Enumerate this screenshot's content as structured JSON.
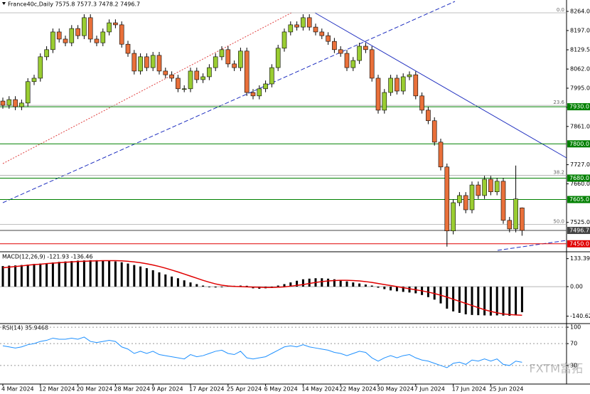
{
  "watermark": "FXTM富拓",
  "chart_data": [
    {
      "type": "candlestick",
      "title": "France40c,Daily  7575.8 7577.3 7478.2 7496.7",
      "categories": [
        "4 Mar 2024",
        null,
        null,
        null,
        null,
        null,
        "12 Mar 2024",
        null,
        null,
        null,
        null,
        null,
        "20 Mar 2024",
        null,
        null,
        null,
        null,
        null,
        "28 Mar 2024",
        null,
        null,
        null,
        null,
        null,
        "9 Apr 2024",
        null,
        null,
        null,
        null,
        null,
        "17 Apr 2024",
        null,
        null,
        null,
        null,
        null,
        "25 Apr 2024",
        null,
        null,
        null,
        null,
        null,
        "6 May 2024",
        null,
        null,
        null,
        null,
        null,
        "14 May 2024",
        null,
        null,
        null,
        null,
        null,
        "22 May 2024",
        null,
        null,
        null,
        null,
        null,
        "30 May 2024",
        null,
        null,
        null,
        null,
        null,
        "7 Jun 2024",
        null,
        null,
        null,
        null,
        null,
        "17 Jun 2024",
        null,
        null,
        null,
        null,
        null,
        "25 Jun 2024",
        null,
        null,
        null,
        null,
        null
      ],
      "open": [
        7950,
        7935,
        7955,
        7930,
        7943,
        8018,
        8030,
        8105,
        8130,
        8192,
        8167,
        8154,
        8204,
        8179,
        8242,
        8167,
        8154,
        8192,
        8224,
        8217,
        8149,
        8117,
        8055,
        8105,
        8067,
        8110,
        8055,
        8042,
        8030,
        7993,
        7993,
        8055,
        8025,
        8035,
        8067,
        8105,
        8130,
        8080,
        8067,
        8125,
        7980,
        7968,
        7993,
        8010,
        8067,
        8135,
        8192,
        8217,
        8209,
        8242,
        8209,
        8192,
        8179,
        8159,
        8130,
        8117,
        8067,
        8092,
        8142,
        8130,
        8030,
        7918,
        7980,
        8030,
        7985,
        8035,
        8042,
        7968,
        7918,
        7881,
        7806,
        7719,
        7495,
        7594,
        7619,
        7569,
        7656,
        7619,
        7676,
        7632,
        7669,
        7532,
        7502,
        7575.8
      ],
      "high": [
        7962,
        7967,
        7967,
        7955,
        8030,
        8042,
        8117,
        8142,
        8204,
        8204,
        8179,
        8216,
        8216,
        8254,
        8254,
        8179,
        8204,
        8236,
        8236,
        8229,
        8161,
        8129,
        8117,
        8117,
        8122,
        8122,
        8067,
        8054,
        8042,
        8005,
        8067,
        8067,
        8047,
        8079,
        8117,
        8142,
        8142,
        8092,
        8137,
        8137,
        7992,
        8005,
        8022,
        8079,
        8147,
        8204,
        8229,
        8229,
        8254,
        8254,
        8221,
        8204,
        8191,
        8171,
        8142,
        8129,
        8104,
        8154,
        8154,
        8142,
        8042,
        7992,
        8042,
        8042,
        8047,
        8054,
        8054,
        7980,
        7930,
        7893,
        7818,
        7731,
        7606,
        7631,
        7631,
        7668,
        7668,
        7688,
        7688,
        7681,
        7681,
        7544,
        7724,
        7577.3
      ],
      "low": [
        7923,
        7923,
        7918,
        7918,
        7931,
        8006,
        8018,
        8093,
        8118,
        8155,
        8142,
        8142,
        8167,
        8167,
        8155,
        8142,
        8142,
        8180,
        8205,
        8137,
        8105,
        8043,
        8043,
        8055,
        8055,
        8043,
        8030,
        8018,
        7981,
        7981,
        7981,
        8013,
        8013,
        8023,
        8055,
        8093,
        8068,
        8055,
        8055,
        7968,
        7956,
        7956,
        7981,
        7998,
        8055,
        8123,
        8180,
        8197,
        8197,
        8197,
        8180,
        8167,
        8147,
        8118,
        8105,
        8055,
        8055,
        8080,
        8118,
        8018,
        7906,
        7906,
        7968,
        7973,
        7973,
        8023,
        7956,
        7906,
        7869,
        7794,
        7707,
        7440,
        7483,
        7582,
        7557,
        7557,
        7607,
        7607,
        7620,
        7620,
        7520,
        7490,
        7490,
        7478.2
      ],
      "close": [
        7935,
        7955,
        7930,
        7943,
        8018,
        8030,
        8105,
        8130,
        8192,
        8167,
        8154,
        8204,
        8179,
        8242,
        8167,
        8154,
        8192,
        8224,
        8217,
        8149,
        8117,
        8055,
        8105,
        8067,
        8110,
        8055,
        8042,
        8030,
        7993,
        7993,
        8055,
        8025,
        8035,
        8067,
        8105,
        8130,
        8080,
        8067,
        8125,
        7980,
        7968,
        7993,
        8010,
        8067,
        8135,
        8192,
        8217,
        8209,
        8242,
        8209,
        8192,
        8179,
        8159,
        8130,
        8117,
        8067,
        8092,
        8142,
        8130,
        8030,
        7918,
        7980,
        8030,
        7985,
        8035,
        8042,
        7968,
        7918,
        7881,
        7806,
        7719,
        7495,
        7594,
        7619,
        7569,
        7656,
        7619,
        7676,
        7632,
        7669,
        7532,
        7502,
        7607,
        7496.7
      ],
      "up_color": "#9acd32",
      "down_color": "#e9703a",
      "ylim": [
        7427,
        8284
      ],
      "yticks": [
        {
          "value": 8264,
          "label": "8264.0"
        },
        {
          "value": 8197,
          "label": "8197.0"
        },
        8129.5,
        {
          "value": 8062,
          "label": "8062.0"
        },
        {
          "value": 7995,
          "label": "7995.0"
        },
        {
          "value": 7928,
          "label": "7928.0"
        },
        {
          "value": 7861,
          "label": "7861.0"
        },
        {
          "value": 7727,
          "label": "7727.0"
        },
        {
          "value": 7660,
          "label": "7660.0"
        },
        {
          "value": 7525,
          "label": "7525.0"
        }
      ],
      "levels": [
        {
          "value": 7930,
          "label": "7930.0",
          "color": "#008000"
        },
        {
          "value": 7800,
          "label": "7800.0",
          "color": "#008000"
        },
        {
          "value": 7680,
          "label": "7680.0",
          "color": "#008000"
        },
        {
          "value": 7605,
          "label": "7605.0",
          "color": "#008000"
        },
        {
          "value": 7496.7,
          "label": "7496.7",
          "color": "#444444"
        },
        {
          "value": 7450,
          "label": "7450.0",
          "color": "#e00000"
        }
      ],
      "fib_levels": [
        {
          "value": 8259,
          "label": "0.0"
        },
        {
          "value": 7935,
          "label": "23.6"
        },
        {
          "value": 7690,
          "label": "38.2"
        },
        {
          "value": 7518,
          "label": "50.0"
        }
      ]
    },
    {
      "type": "macd",
      "title": "MACD(12,26,9) -121.93 -136.46",
      "values": [
        98,
        100,
        101,
        103,
        105,
        108,
        110,
        112,
        115,
        118,
        120,
        122,
        124,
        125,
        126,
        126,
        125,
        123,
        120,
        116,
        110,
        103,
        96,
        88,
        78,
        68,
        58,
        48,
        40,
        30,
        20,
        12,
        5,
        -3,
        -4,
        -3,
        2,
        4,
        5,
        4,
        -8,
        -10,
        -8,
        -3,
        5,
        12,
        20,
        28,
        35,
        38,
        40,
        40,
        38,
        35,
        30,
        25,
        20,
        15,
        10,
        5,
        -5,
        -12,
        -18,
        -22,
        -25,
        -28,
        -32,
        -40,
        -50,
        -62,
        -80,
        -105,
        -118,
        -125,
        -132,
        -135,
        -136,
        -137,
        -138,
        -137,
        -138,
        -139,
        -136,
        -121.93
      ],
      "signal": [
        90,
        93,
        96,
        99,
        102,
        105,
        107,
        110,
        112,
        114,
        116,
        118,
        120,
        121,
        122,
        123,
        124,
        124,
        124,
        123,
        121,
        118,
        114,
        109,
        103,
        96,
        88,
        79,
        70,
        60,
        50,
        40,
        30,
        21,
        13,
        7,
        3,
        1,
        0,
        -1,
        -2,
        -3,
        -4,
        -4,
        -3,
        -1,
        2,
        6,
        10,
        15,
        20,
        24,
        27,
        29,
        30,
        30,
        29,
        27,
        24,
        20,
        15,
        10,
        5,
        0,
        -5,
        -10,
        -15,
        -20,
        -26,
        -33,
        -41,
        -50,
        -60,
        -70,
        -80,
        -90,
        -100,
        -110,
        -118,
        -125,
        -130,
        -133,
        -135,
        -136.46
      ],
      "color": "#000000",
      "signal_color": "#e00000",
      "ylim": [
        -166,
        156
      ],
      "yticks": [
        133.39,
        {
          "value": 0,
          "label": "0.00"
        },
        -140.62
      ]
    },
    {
      "type": "line",
      "title": "RSI(14) 35.9468",
      "values": [
        66,
        64,
        62,
        64,
        68,
        70,
        74,
        76,
        80,
        78,
        78,
        80,
        78,
        82,
        74,
        72,
        74,
        76,
        74,
        64,
        60,
        52,
        56,
        52,
        56,
        50,
        48,
        46,
        44,
        42,
        50,
        46,
        48,
        52,
        56,
        58,
        52,
        50,
        56,
        44,
        42,
        44,
        46,
        52,
        58,
        64,
        66,
        64,
        68,
        64,
        62,
        60,
        58,
        54,
        52,
        48,
        52,
        56,
        54,
        44,
        38,
        44,
        48,
        44,
        48,
        50,
        44,
        40,
        38,
        34,
        30,
        26,
        34,
        36,
        32,
        40,
        38,
        42,
        38,
        42,
        32,
        30,
        38,
        35.9468
      ],
      "color": "#1e90ff",
      "ylim": [
        0,
        104
      ],
      "yticks": [
        100,
        70,
        30
      ]
    }
  ]
}
